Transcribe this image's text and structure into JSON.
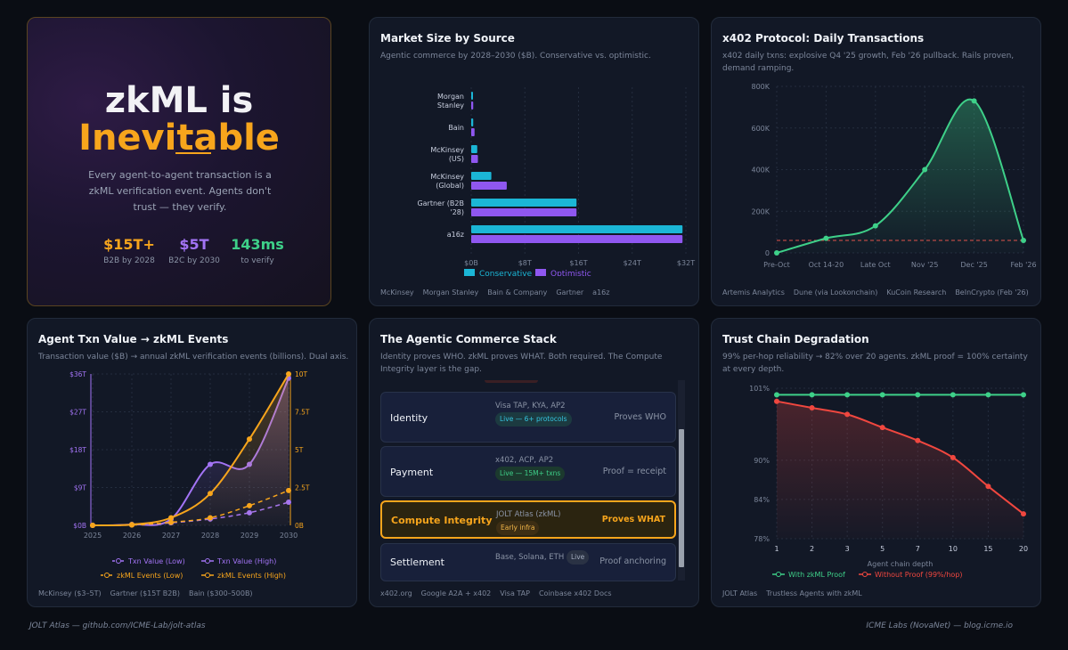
{
  "hero": {
    "title_line1": "zkML is",
    "title_line2": "Inevitable",
    "description": "Every agent-to-agent transaction is a zkML verification event. Agents don't trust — they verify.",
    "stats": [
      {
        "value": "$15T+",
        "label": "B2B by 2028",
        "color": "#f7a51c"
      },
      {
        "value": "$5T",
        "label": "B2C by 2030",
        "color": "#a374f5"
      },
      {
        "value": "143ms",
        "label": "to verify",
        "color": "#3ed089"
      }
    ]
  },
  "market": {
    "title": "Market Size by Source",
    "subtitle": "Agentic commerce by 2028–2030 ($B). Conservative vs. optimistic.",
    "sources": [
      "McKinsey",
      "Morgan Stanley",
      "Bain & Company",
      "Gartner",
      "a16z"
    ]
  },
  "x402": {
    "title": "x402 Protocol: Daily Transactions",
    "subtitle_line1": "x402 daily txns: explosive Q4 '25 growth, Feb '26 pullback. Rails proven,",
    "subtitle_line2": "demand ramping.",
    "sources": [
      "Artemis Analytics",
      "Dune (via Lookonchain)",
      "KuCoin Research",
      "BeInCrypto (Feb '26)"
    ]
  },
  "agent": {
    "title": "Agent Txn Value → zkML Events",
    "subtitle": "Transaction value ($B) → annual zkML verification events (billions). Dual axis.",
    "sources": [
      "McKinsey ($3–5T)",
      "Gartner ($15T B2B)",
      "Bain ($300–500B)"
    ]
  },
  "stack": {
    "title": "The Agentic Commerce Stack",
    "subtitle_line1": "Identity proves WHO. zkML proves WHAT. Both required. The Compute",
    "subtitle_line2": "Integrity layer is the gap.",
    "rows": [
      {
        "name": "Identity",
        "detail": "Visa TAP, KYA, AP2",
        "pill": "Live — 6+ protocols",
        "right": "Proves WHO"
      },
      {
        "name": "Payment",
        "detail": "x402, ACP, AP2",
        "pill": "Live — 15M+ txns",
        "right": "Proof = receipt"
      },
      {
        "name": "Compute Integrity",
        "detail": "JOLT Atlas (zkML)",
        "pill": "Early infra",
        "right": "Proves WHAT"
      },
      {
        "name": "Settlement",
        "detail": "Base, Solana, ETH",
        "pill": "Live",
        "right": "Proof anchoring"
      }
    ],
    "sources": [
      "x402.org",
      "Google A2A + x402",
      "Visa TAP",
      "Coinbase x402 Docs"
    ]
  },
  "trust": {
    "title": "Trust Chain Degradation",
    "subtitle_line1": "99% per-hop reliability → 82% over 20 agents. zkML proof = 100% certainty",
    "subtitle_line2": "at every depth.",
    "sources": [
      "JOLT Atlas",
      "Trustless Agents with zkML"
    ]
  },
  "footer": {
    "left": "JOLT Atlas — github.com/ICME-Lab/jolt-atlas",
    "right": "ICME Labs (NovaNet) — blog.icme.io"
  },
  "chart_data": [
    {
      "id": "market",
      "type": "bar",
      "orientation": "horizontal",
      "categories": [
        [
          "Morgan",
          "Stanley"
        ],
        [
          "Bain"
        ],
        [
          "McKinsey",
          "(US)"
        ],
        [
          "McKinsey",
          "(Global)"
        ],
        [
          "Gartner (B2B",
          "'28)"
        ],
        [
          "a16z"
        ]
      ],
      "series": [
        {
          "name": "Conservative",
          "color": "#1bb6d6",
          "values": [
            0.2,
            0.3,
            0.9,
            3,
            15.7,
            31.5
          ]
        },
        {
          "name": "Optimistic",
          "color": "#8f57f0",
          "values": [
            0.3,
            0.5,
            1,
            5.3,
            15.7,
            31.5
          ]
        }
      ],
      "x_ticks": [
        "$0B",
        "$8T",
        "$16T",
        "$24T",
        "$32T"
      ],
      "xlim": [
        0,
        32
      ]
    },
    {
      "id": "x402",
      "type": "line",
      "x": [
        "Pre-Oct",
        "Oct 14-20",
        "Late Oct",
        "Nov '25",
        "Dec '25",
        "Feb '26"
      ],
      "values": [
        0,
        70000,
        130000,
        400000,
        730000,
        60000
      ],
      "baseline": 60000,
      "y_ticks": [
        "0",
        "200K",
        "400K",
        "600K",
        "800K"
      ],
      "ylim": [
        0,
        800000
      ],
      "color": "#3ed089"
    },
    {
      "id": "agent",
      "type": "line",
      "x": [
        "2025",
        "2026",
        "2027",
        "2028",
        "2029",
        "2030"
      ],
      "series": [
        {
          "name": "Txn Value (Low)",
          "axis": "left",
          "color": "#a374f5",
          "dashed": true,
          "values": [
            0,
            0.1,
            0.6,
            1.5,
            3,
            5.5
          ]
        },
        {
          "name": "Txn Value (High)",
          "axis": "left",
          "color": "#a374f5",
          "dashed": false,
          "values": [
            0,
            0.2,
            1.5,
            14.5,
            14.5,
            35
          ]
        },
        {
          "name": "zkML Events (Low)",
          "axis": "right",
          "color": "#f7a51c",
          "dashed": true,
          "values": [
            0,
            0.02,
            0.2,
            0.5,
            1.3,
            2.3
          ]
        },
        {
          "name": "zkML Events (High)",
          "axis": "right",
          "color": "#f7a51c",
          "dashed": false,
          "values": [
            0,
            0.05,
            0.5,
            2.1,
            5.7,
            10
          ]
        }
      ],
      "y_left_ticks": [
        "$0B",
        "$9T",
        "$18T",
        "$27T",
        "$36T"
      ],
      "y_right_ticks": [
        "0B",
        "2.5T",
        "5T",
        "7.5T",
        "10T"
      ],
      "ylim_left": [
        0,
        36
      ],
      "ylim_right": [
        0,
        10
      ]
    },
    {
      "id": "trust",
      "type": "line",
      "x": [
        "1",
        "2",
        "3",
        "5",
        "7",
        "10",
        "15",
        "20"
      ],
      "xlabel": "Agent chain depth",
      "series": [
        {
          "name": "With zkML Proof",
          "color": "#3ed089",
          "values": [
            100,
            100,
            100,
            100,
            100,
            100,
            100,
            100
          ]
        },
        {
          "name": "Without Proof (99%/hop)",
          "color": "#f0473f",
          "values": [
            99,
            98,
            97,
            95,
            93,
            90.4,
            86,
            81.8
          ]
        }
      ],
      "y_ticks": [
        "78%",
        "84%",
        "90%",
        "101%"
      ],
      "ylim": [
        78,
        101
      ]
    }
  ]
}
